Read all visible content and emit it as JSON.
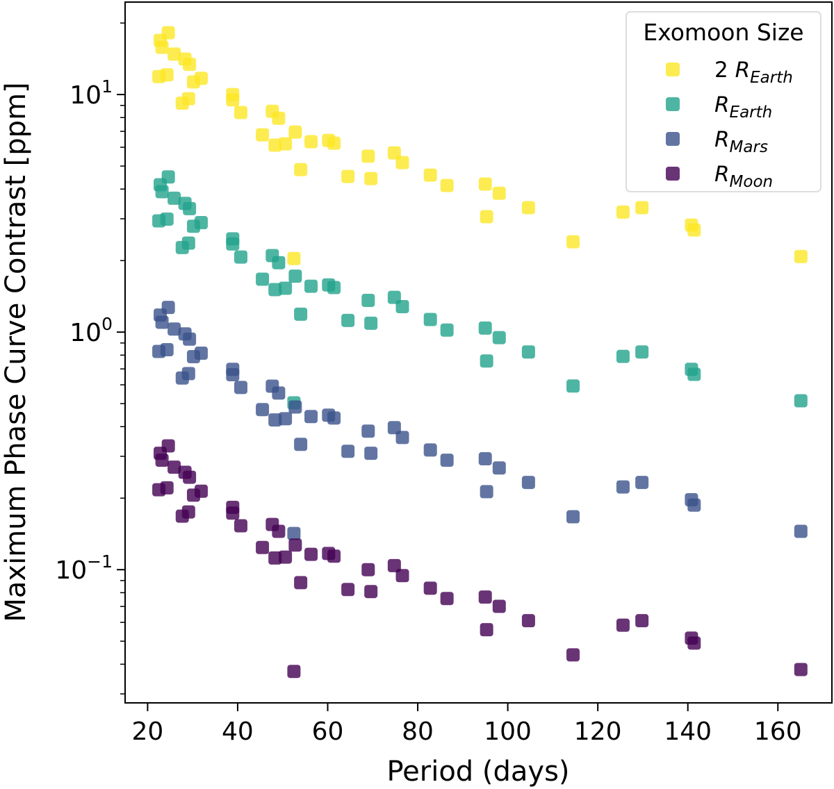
{
  "chart_data": {
    "type": "scatter",
    "title": "",
    "xlabel": "Period (days)",
    "ylabel": "Maximum Phase Curve Contrast [ppm]",
    "xlim": [
      15,
      172
    ],
    "ylim": [
      0.0275,
      24.5
    ],
    "yscale": "log",
    "xticks": [
      20,
      40,
      60,
      80,
      100,
      120,
      140,
      160
    ],
    "yticks": [
      {
        "value": 0.1,
        "label_base": "10",
        "label_exp": "−1"
      },
      {
        "value": 1,
        "label_base": "10",
        "label_exp": "0"
      },
      {
        "value": 10,
        "label_base": "10",
        "label_exp": "1"
      }
    ],
    "grid": false,
    "marker": "square",
    "legend": {
      "title": "Exomoon Size",
      "placement": "top-right",
      "entries": [
        {
          "prefix": "2 ",
          "symbol": "R",
          "sub": "Earth",
          "color": "#fde725"
        },
        {
          "prefix": "",
          "symbol": "R",
          "sub": "Earth",
          "color": "#22a38c"
        },
        {
          "prefix": "",
          "symbol": "R",
          "sub": "Mars",
          "color": "#3b528b"
        },
        {
          "prefix": "",
          "symbol": "R",
          "sub": "Moon",
          "color": "#440154"
        }
      ]
    },
    "x": [
      22.8,
      23.2,
      24.6,
      22.5,
      24.3,
      25.9,
      28.3,
      29.3,
      27.7,
      29.1,
      30.2,
      31.9,
      38.9,
      38.9,
      40.7,
      45.5,
      47.7,
      49.1,
      48.3,
      50.6,
      52.8,
      52.5,
      54.0,
      56.3,
      60.2,
      61.4,
      64.5,
      69.0,
      69.6,
      74.8,
      76.6,
      82.8,
      86.5,
      95.0,
      95.3,
      98.1,
      104.6,
      114.5,
      125.6,
      129.8,
      140.8,
      141.4,
      165.1
    ],
    "series": [
      {
        "name": "2 R_Earth",
        "color": "#fde725",
        "values": [
          16.9,
          15.8,
          18.2,
          11.9,
          12.1,
          14.8,
          14.1,
          13.4,
          9.2,
          9.6,
          11.3,
          11.7,
          10.0,
          9.5,
          8.4,
          6.77,
          8.5,
          7.95,
          6.12,
          6.2,
          6.95,
          2.04,
          4.83,
          6.33,
          6.41,
          6.24,
          4.52,
          5.5,
          4.43,
          5.68,
          5.17,
          4.58,
          4.14,
          4.2,
          3.06,
          3.84,
          3.34,
          2.4,
          3.2,
          3.34,
          2.82,
          2.69,
          2.08
        ]
      },
      {
        "name": "R_Earth",
        "color": "#22a38c",
        "values": [
          4.17,
          3.9,
          4.5,
          2.94,
          2.99,
          3.66,
          3.48,
          3.31,
          2.27,
          2.37,
          2.79,
          2.89,
          2.47,
          2.35,
          2.07,
          1.67,
          2.1,
          1.96,
          1.51,
          1.53,
          1.72,
          0.504,
          1.19,
          1.56,
          1.58,
          1.54,
          1.12,
          1.36,
          1.09,
          1.4,
          1.28,
          1.13,
          1.02,
          1.04,
          0.756,
          0.948,
          0.825,
          0.593,
          0.79,
          0.825,
          0.697,
          0.664,
          0.514
        ]
      },
      {
        "name": "R_Mars",
        "color": "#3b528b",
        "values": [
          1.18,
          1.1,
          1.27,
          0.829,
          0.843,
          1.03,
          0.983,
          0.934,
          0.641,
          0.669,
          0.788,
          0.815,
          0.697,
          0.662,
          0.585,
          0.472,
          0.592,
          0.554,
          0.427,
          0.432,
          0.484,
          0.142,
          0.337,
          0.441,
          0.447,
          0.435,
          0.315,
          0.383,
          0.309,
          0.396,
          0.36,
          0.319,
          0.289,
          0.293,
          0.213,
          0.268,
          0.233,
          0.167,
          0.223,
          0.233,
          0.197,
          0.187,
          0.145
        ]
      },
      {
        "name": "R_Moon",
        "color": "#440154",
        "values": [
          0.309,
          0.289,
          0.332,
          0.217,
          0.221,
          0.27,
          0.257,
          0.245,
          0.168,
          0.175,
          0.206,
          0.214,
          0.183,
          0.173,
          0.153,
          0.124,
          0.155,
          0.145,
          0.112,
          0.113,
          0.127,
          0.0373,
          0.0882,
          0.116,
          0.117,
          0.114,
          0.0825,
          0.1,
          0.0809,
          0.104,
          0.0944,
          0.0836,
          0.0756,
          0.0767,
          0.0559,
          0.0701,
          0.061,
          0.0438,
          0.0584,
          0.061,
          0.0515,
          0.0491,
          0.038
        ]
      }
    ]
  }
}
